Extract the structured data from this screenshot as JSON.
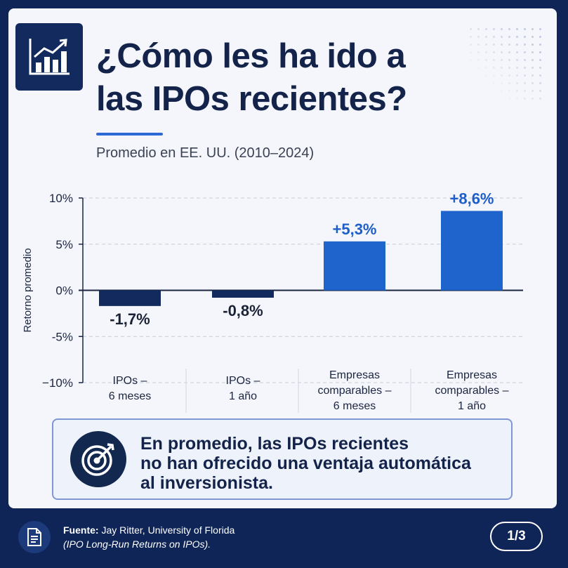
{
  "header": {
    "title_line1": "¿Cómo les ha ido a",
    "title_line2": "las IPOs recientes?",
    "subtitle": "Promedio en EE. UU. (2010–2024)",
    "logo_icon": "growth-chart-icon"
  },
  "chart_data": {
    "type": "bar",
    "ylabel": "Retorno promedio",
    "ylim": [
      -10,
      10
    ],
    "yticks": [
      10,
      5,
      0,
      -5,
      -10
    ],
    "ytick_labels": [
      "10%",
      "5%",
      "0%",
      "-5%",
      "−10%"
    ],
    "grid": "horizontal dashed",
    "categories": [
      [
        "IPOs –",
        "6 meses"
      ],
      [
        "IPOs –",
        "1 año"
      ],
      [
        "Empresas",
        "comparables –",
        "6 meses"
      ],
      [
        "Empresas",
        "comparables –",
        "1 año"
      ]
    ],
    "values": [
      -1.7,
      -0.8,
      5.3,
      8.6
    ],
    "data_labels": [
      "-1,7%",
      "-0,8%",
      "+5,3%",
      "+8,6%"
    ],
    "colors": {
      "negative_bar": "#132a5e",
      "positive_bar": "#1f63cc",
      "negative_label": "#1a2235",
      "positive_label": "#1e5ec8"
    }
  },
  "callout": {
    "icon": "target-icon",
    "line1": "En promedio, las IPOs recientes",
    "line2": "no han ofrecido una ventaja automática",
    "line3": "al inversionista."
  },
  "footer": {
    "icon": "document-icon",
    "source_label": "Fuente:",
    "source_text": "Jay Ritter, University of Florida",
    "publication": "(IPO Long-Run Returns on IPOs).",
    "page": "1/3"
  }
}
